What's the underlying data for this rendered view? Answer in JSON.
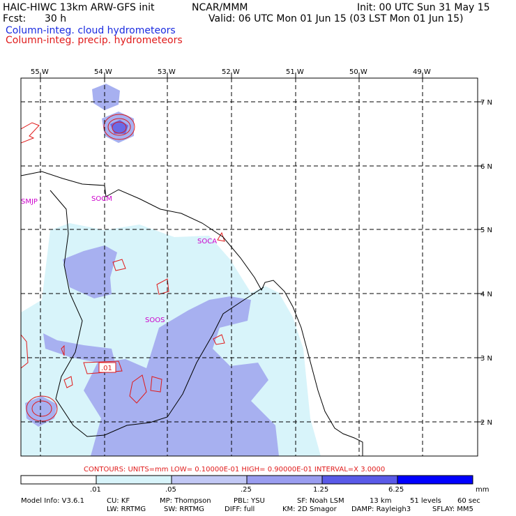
{
  "header": {
    "model": "HAIC-HIWC 13km ARW-GFS init",
    "org": "NCAR/MMM",
    "init": "Init: 00 UTC Sun 31 May 15",
    "fcst_label": "Fcst:",
    "fcst_value": "30 h",
    "valid": "Valid: 06 UTC Mon 01 Jun 15 (03 LST Mon 01 Jun 15)",
    "field1": "Column-integ. cloud hydrometeors",
    "field2": "Column-integ. precip. hydrometeors"
  },
  "colors": {
    "field1": "#1a2be0",
    "field2": "#e01a1a",
    "shade_light": "#d8f4fa",
    "shade_mid": "#a7b0f0",
    "shade_dark": "#6a6ae6",
    "station": "#cc00cc"
  },
  "axes": {
    "lon_labels": [
      "55 W",
      "54 W",
      "53 W",
      "52 W",
      "51 W",
      "50 W",
      "49 W"
    ],
    "lat_labels": [
      "7 N",
      "6 N",
      "5 N",
      "4 N",
      "3 N",
      "2 N"
    ]
  },
  "stations": [
    "SMJP",
    "SOCM",
    "SOCA",
    "SOOS"
  ],
  "contour_label": ".01",
  "contours_info": "CONTOURS:  UNITS=mm  LOW= 0.10000E-01  HIGH= 0.90000E-01  INTERVAL=X  3.0000",
  "colorbar": {
    "ticks": [
      ".01",
      ".05",
      ".25",
      "1.25",
      "6.25"
    ],
    "unit": "mm",
    "colors": [
      "#ffffff",
      "#d8f4fa",
      "#c2c8f5",
      "#9a9df0",
      "#5a5ae8",
      "#0000ff"
    ]
  },
  "model_info": {
    "line1": [
      "Model Info: V3.6.1",
      "CU: KF",
      "MP: Thompson",
      "PBL: YSU",
      "SF: Noah LSM",
      "13 km",
      "51 levels",
      "60 sec"
    ],
    "line2": [
      "LW: RRTMG",
      "SW: RRTMG",
      "DIFF: full",
      "KM: 2D Smagor",
      "DAMP: Rayleigh3",
      "SFLAY: MM5"
    ]
  }
}
